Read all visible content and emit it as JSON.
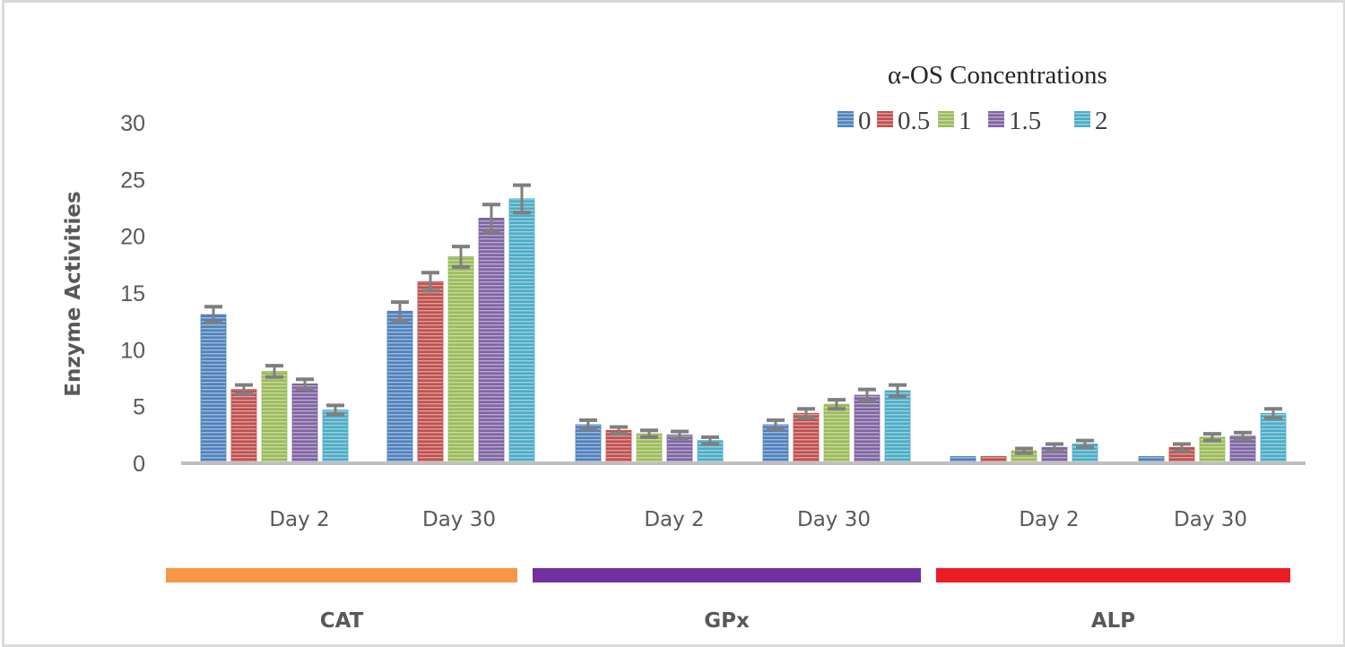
{
  "chart_data": {
    "type": "bar",
    "title": "",
    "xlabel": "",
    "ylabel": "Enzyme Activities",
    "ylim": [
      0,
      30
    ],
    "yticks": [
      0,
      5,
      10,
      15,
      20,
      25,
      30
    ],
    "grid": false,
    "legend": {
      "title": "α-OS Concentrations",
      "placement": "top-right",
      "entries": [
        "0",
        "0.5",
        "1",
        "1.5",
        "2"
      ]
    },
    "groups": [
      {
        "label": "CAT",
        "color": "#f79646",
        "categories": [
          "Day 2",
          "Day 30"
        ]
      },
      {
        "label": "GPx",
        "color": "#7030a0",
        "categories": [
          "Day 2",
          "Day 30"
        ]
      },
      {
        "label": "ALP",
        "color": "#ed1c24",
        "categories": [
          "Day 2",
          "Day 30"
        ]
      }
    ],
    "categories": [
      "CAT Day 2",
      "CAT Day 30",
      "GPx Day 2",
      "GPx Day 30",
      "ALP Day 2",
      "ALP Day 30"
    ],
    "category_labels": [
      "Day 2",
      "Day 30",
      "Day 2",
      "Day 30",
      "Day 2",
      "Day 30"
    ],
    "series": [
      {
        "name": "0",
        "color": "#4f81bd",
        "values": [
          13.1,
          13.4,
          3.4,
          3.4,
          0.6,
          0.6
        ],
        "errors": [
          0.7,
          0.8,
          0.4,
          0.4,
          0,
          0
        ]
      },
      {
        "name": "0.5",
        "color": "#c0504d",
        "values": [
          6.5,
          16.0,
          2.9,
          4.4,
          0.6,
          1.4
        ],
        "errors": [
          0.4,
          0.8,
          0.3,
          0.4,
          0,
          0.3
        ]
      },
      {
        "name": "1",
        "color": "#9bbb59",
        "values": [
          8.1,
          18.2,
          2.6,
          5.2,
          1.1,
          2.3
        ],
        "errors": [
          0.5,
          0.9,
          0.3,
          0.4,
          0.2,
          0.3
        ]
      },
      {
        "name": "1.5",
        "color": "#8064a2",
        "values": [
          7.0,
          21.6,
          2.5,
          6.0,
          1.4,
          2.4
        ],
        "errors": [
          0.4,
          1.2,
          0.3,
          0.5,
          0.3,
          0.3
        ]
      },
      {
        "name": "2",
        "color": "#4bacc6",
        "values": [
          4.7,
          23.3,
          2.0,
          6.4,
          1.7,
          4.4
        ],
        "errors": [
          0.4,
          1.2,
          0.3,
          0.5,
          0.3,
          0.4
        ]
      }
    ]
  }
}
